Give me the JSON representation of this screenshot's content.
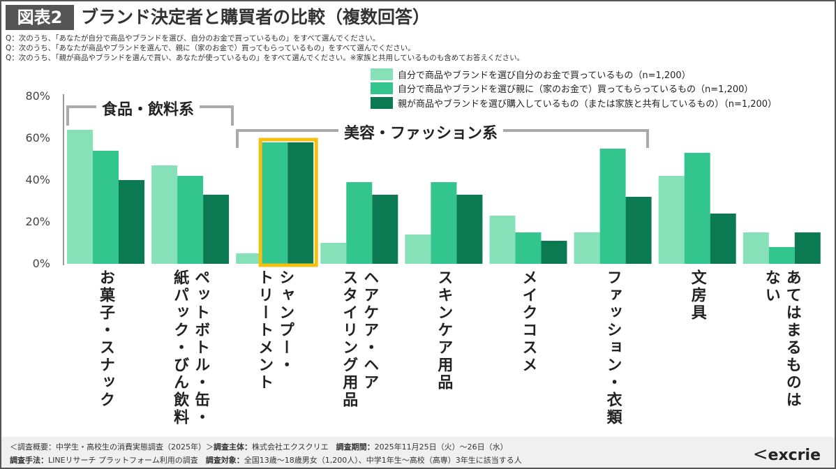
{
  "header": {
    "badge": "図表2",
    "title": "ブランド決定者と購買者の比較（複数回答）",
    "questions": [
      "Q：次のうち、「あなたが自分で商品やブランドを選び、自分のお金で買っているもの」をすべて選んでください。",
      "Q：次のうち、「あなたが商品やブランドを選んで、親に（家のお金で）買ってもらっているもの」をすべて選んでください。",
      "Q：次のうち、「親が商品やブランドを選んで買い、あなたが使っているもの」をすべて選んでください。※家族と共用しているものも含めてお答えください。"
    ]
  },
  "chart_data": {
    "type": "bar",
    "categories": [
      "お菓子・スナック",
      "ペットボトル・缶・\n紙パック・びん飲料",
      "シャンプー・\nトリートメント",
      "ヘアケア・ヘア\nスタイリング用品",
      "スキンケア用品",
      "メイクコスメ",
      "ファッション・衣類",
      "文房具",
      "あてはまるものは\nない"
    ],
    "series": [
      {
        "name": "自分で商品やブランドを選び自分のお金で買っているもの（n=1,200）",
        "color": "#86e1b9",
        "values": [
          64,
          47,
          5,
          10,
          14,
          23,
          15,
          42,
          15
        ]
      },
      {
        "name": "自分で商品やブランドを選び親に（家のお金で）買ってもらっているもの（n=1,200）",
        "color": "#33c58e",
        "values": [
          54,
          42,
          58,
          39,
          39,
          15,
          55,
          53,
          8
        ]
      },
      {
        "name": "親が商品やブランドを選び購入しているもの（または家族と共有しているもの）（n=1,200）",
        "color": "#0b7a52",
        "values": [
          40,
          33,
          58,
          33,
          33,
          11,
          32,
          24,
          15
        ]
      }
    ],
    "yticks": [
      "0%",
      "20%",
      "40%",
      "60%",
      "80%"
    ],
    "ylim": [
      0,
      80
    ],
    "legend": "top-right",
    "highlight_category": "シャンプー・\nトリートメント",
    "highlight_color": "#f3c010",
    "groups": [
      {
        "label": "食品・飲料系"
      },
      {
        "label": "美容・ファッション系"
      }
    ]
  },
  "footer": {
    "line1_a": "＜調査概要：中学生・高校生の消費実態調査（2025年）＞",
    "line1_b": "調査主体：",
    "line1_c": "株式会社エクスクリエ　",
    "line1_d": "調査期間：",
    "line1_e": "2025年11月25日（火）～26日（水）",
    "line2_a": "調査手法：",
    "line2_b": "LINEリサーチ プラットフォーム利用の調査　",
    "line2_c": "調査対象：",
    "line2_d": "全国13歳～18歳男女（1,200人）、中学1年生～高校（高専）3年生に該当する人",
    "logo": "excrie"
  }
}
